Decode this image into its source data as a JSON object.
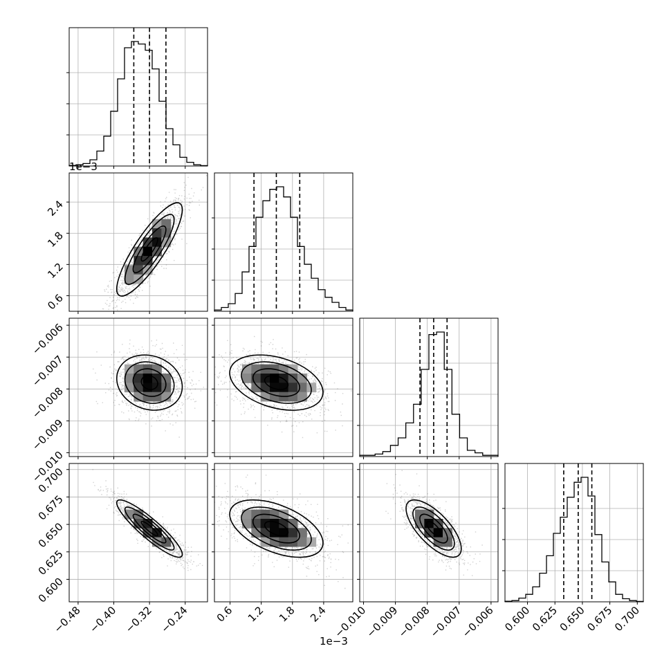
{
  "chart_data": {
    "type": "corner",
    "description": "Corner plot of a 4-parameter posterior: 1D histograms on the diagonal with dashed 16/50/84% quantile lines, 2D scatter + density + contour panels below.",
    "grid": true,
    "parameters": [
      {
        "range": [
          -0.5,
          -0.19
        ],
        "ticks": [
          -0.48,
          -0.4,
          -0.32,
          -0.24
        ],
        "tick_labels": [
          "−0.48",
          "−0.40",
          "−0.32",
          "−0.24"
        ],
        "quantiles": [
          -0.3552,
          -0.32,
          -0.2832
        ],
        "hist": [
          0.5,
          1,
          2,
          5,
          12,
          24,
          44,
          70,
          95,
          100,
          98,
          93,
          78,
          52,
          30,
          17,
          7,
          3,
          1,
          0.3
        ]
      },
      {
        "range": [
          0.3,
          2.96
        ],
        "ticks": [
          0.6,
          1.2,
          1.8,
          2.4
        ],
        "tick_labels": [
          "0.6",
          "1.2",
          "1.8",
          "2.4"
        ],
        "offset_label": "1e−3",
        "quantiles": [
          1.06,
          1.49,
          1.94
        ],
        "hist": [
          1,
          3,
          6,
          14,
          31,
          51,
          74,
          87,
          96,
          98,
          90,
          74,
          51,
          37,
          26,
          17,
          11,
          7,
          3,
          1
        ]
      },
      {
        "range": [
          -0.01012,
          -0.00578
        ],
        "ticks": [
          -0.01,
          -0.009,
          -0.008,
          -0.007,
          -0.006
        ],
        "tick_labels": [
          "−0.010",
          "−0.009",
          "−0.008",
          "−0.007",
          "−0.006"
        ],
        "quantiles": [
          -0.00823,
          -0.0078,
          -0.00738
        ],
        "hist": [
          1,
          1,
          2,
          4,
          9,
          15,
          27,
          42,
          70,
          98,
          100,
          70,
          34,
          15,
          5,
          3,
          1,
          1
        ]
      },
      {
        "range": [
          0.5795,
          0.7055
        ],
        "ticks": [
          0.6,
          0.625,
          0.65,
          0.675,
          0.7
        ],
        "tick_labels": [
          "0.600",
          "0.625",
          "0.650",
          "0.675",
          "0.700"
        ],
        "quantiles": [
          0.633,
          0.6462,
          0.6586
        ],
        "hist": [
          0.5,
          1,
          3,
          6,
          12,
          23,
          37,
          55,
          68,
          84,
          96,
          100,
          85,
          54,
          32,
          16,
          6,
          2.5,
          1,
          0.3
        ]
      }
    ],
    "correlations": [
      [
        1,
        0.85,
        -0.15,
        -0.9
      ],
      [
        0.85,
        1,
        -0.35,
        -0.5
      ],
      [
        -0.15,
        -0.35,
        1,
        -0.7
      ],
      [
        -0.9,
        -0.5,
        -0.7,
        1
      ]
    ]
  }
}
